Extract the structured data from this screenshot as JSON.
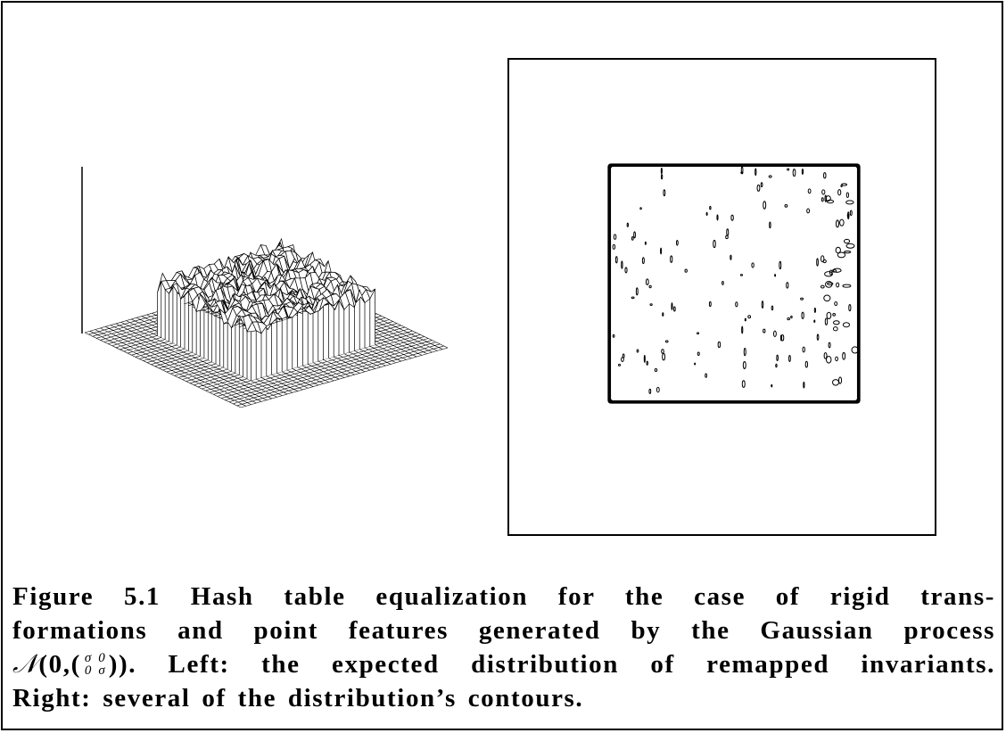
{
  "caption": {
    "lines": [
      "Figure 5.1  Hash table equalization for the case of rigid trans-",
      "formations and point features generated by the Gaussian process",
      null,
      "Right: several of the distribution’s contours."
    ],
    "math": {
      "symbol": "𝒩",
      "open": "(",
      "mean": "0",
      "sep": ",(",
      "matrix": [
        [
          "σ",
          "0"
        ],
        [
          "0",
          "σ"
        ]
      ],
      "close": "))"
    },
    "line3_rest": ". Left: the expected distribution of remapped invariants."
  }
}
